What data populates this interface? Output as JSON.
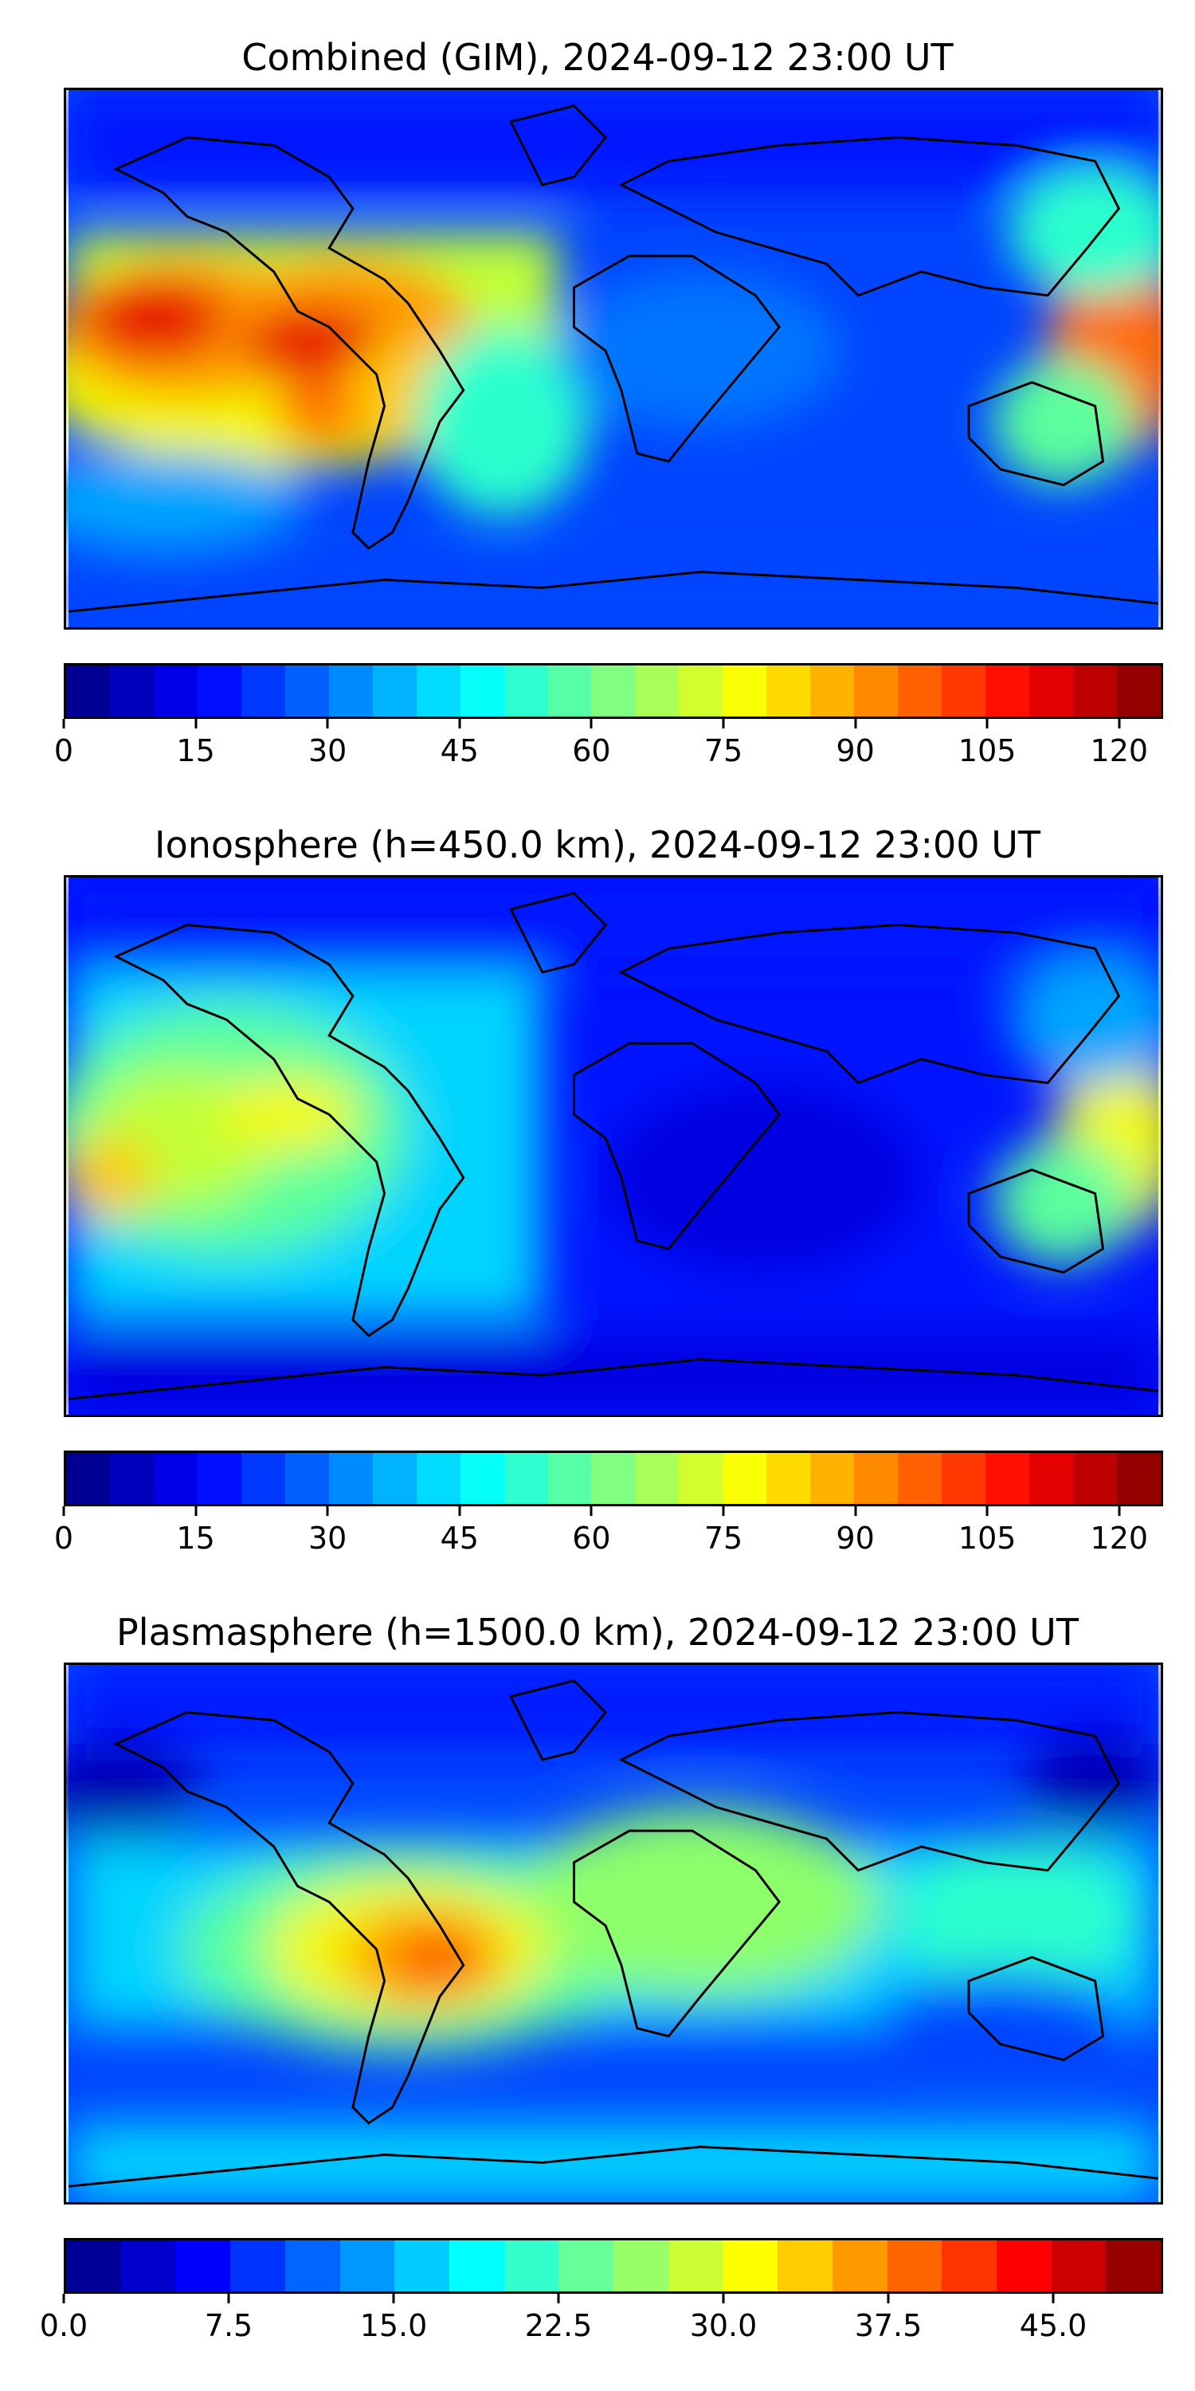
{
  "panels": [
    {
      "title": "Combined (GIM), 2024-09-12 23:00 UT",
      "colorbar": {
        "min": 0,
        "max": 125,
        "levels": 25,
        "ticks": [
          "0",
          "15",
          "30",
          "45",
          "60",
          "75",
          "90",
          "105",
          "120"
        ],
        "tick_values": [
          0,
          15,
          30,
          45,
          60,
          75,
          90,
          105,
          120
        ]
      }
    },
    {
      "title": "Ionosphere  (h=450.0 km), 2024-09-12 23:00 UT",
      "colorbar": {
        "min": 0,
        "max": 125,
        "levels": 25,
        "ticks": [
          "0",
          "15",
          "30",
          "45",
          "60",
          "75",
          "90",
          "105",
          "120"
        ],
        "tick_values": [
          0,
          15,
          30,
          45,
          60,
          75,
          90,
          105,
          120
        ]
      }
    },
    {
      "title": "Plasmasphere (h=1500.0 km), 2024-09-12 23:00 UT",
      "colorbar": {
        "min": 0,
        "max": 50,
        "levels": 20,
        "ticks": [
          "0.0",
          "7.5",
          "15.0",
          "22.5",
          "30.0",
          "37.5",
          "45.0"
        ],
        "tick_values": [
          0,
          7.5,
          15,
          22.5,
          30,
          37.5,
          45
        ]
      }
    }
  ],
  "colormap": "jet",
  "jet_colors": [
    "#00007f",
    "#0000b0",
    "#0000e0",
    "#0014ff",
    "#0044ff",
    "#0074ff",
    "#00a4ff",
    "#00d4ff",
    "#29ffce",
    "#5aff9d",
    "#8dff6a",
    "#c0ff37",
    "#f3f900",
    "#ffc800",
    "#ff9a00",
    "#ff6a00",
    "#ff3a00",
    "#e60000",
    "#b40000",
    "#7f0000"
  ]
}
